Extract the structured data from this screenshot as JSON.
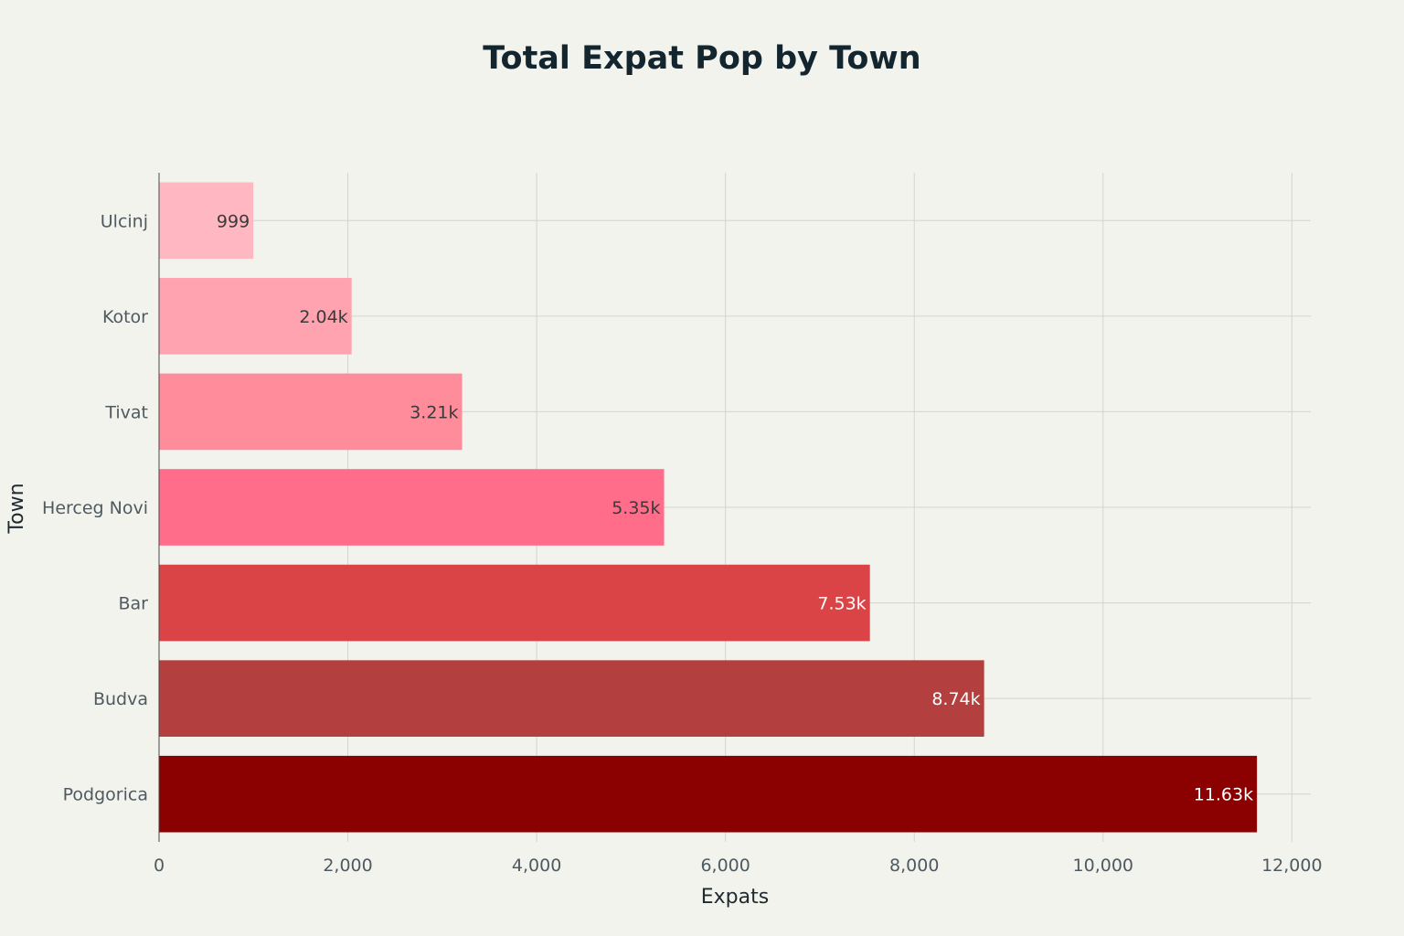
{
  "chart_data": {
    "type": "bar",
    "orientation": "horizontal",
    "title": "Total Expat Pop by Town",
    "xlabel": "Expats",
    "ylabel": "Town",
    "xlim": [
      0,
      12200
    ],
    "x_ticks": [
      0,
      2000,
      4000,
      6000,
      8000,
      10000,
      12000
    ],
    "x_tick_labels": [
      "0",
      "2,000",
      "4,000",
      "6,000",
      "8,000",
      "10,000",
      "12,000"
    ],
    "grid": true,
    "legend": "none",
    "categories": [
      "Ulcinj",
      "Kotor",
      "Tivat",
      "Herceg Novi",
      "Bar",
      "Budva",
      "Podgorica"
    ],
    "values": [
      999,
      2040,
      3210,
      5350,
      7530,
      8740,
      11630
    ],
    "data_labels": [
      "999",
      "2.04k",
      "3.21k",
      "5.35k",
      "7.53k",
      "8.74k",
      "11.63k"
    ],
    "colors": [
      "#ffb8c1",
      "#ffa3b0",
      "#ff8c9b",
      "#ff6d8a",
      "#db4446",
      "#b3403e",
      "#8b0000"
    ],
    "label_colors": [
      "#3a3a3a",
      "#3a3a3a",
      "#3a3a3a",
      "#3a3a3a",
      "#ffffff",
      "#ffffff",
      "#ffffff"
    ]
  }
}
